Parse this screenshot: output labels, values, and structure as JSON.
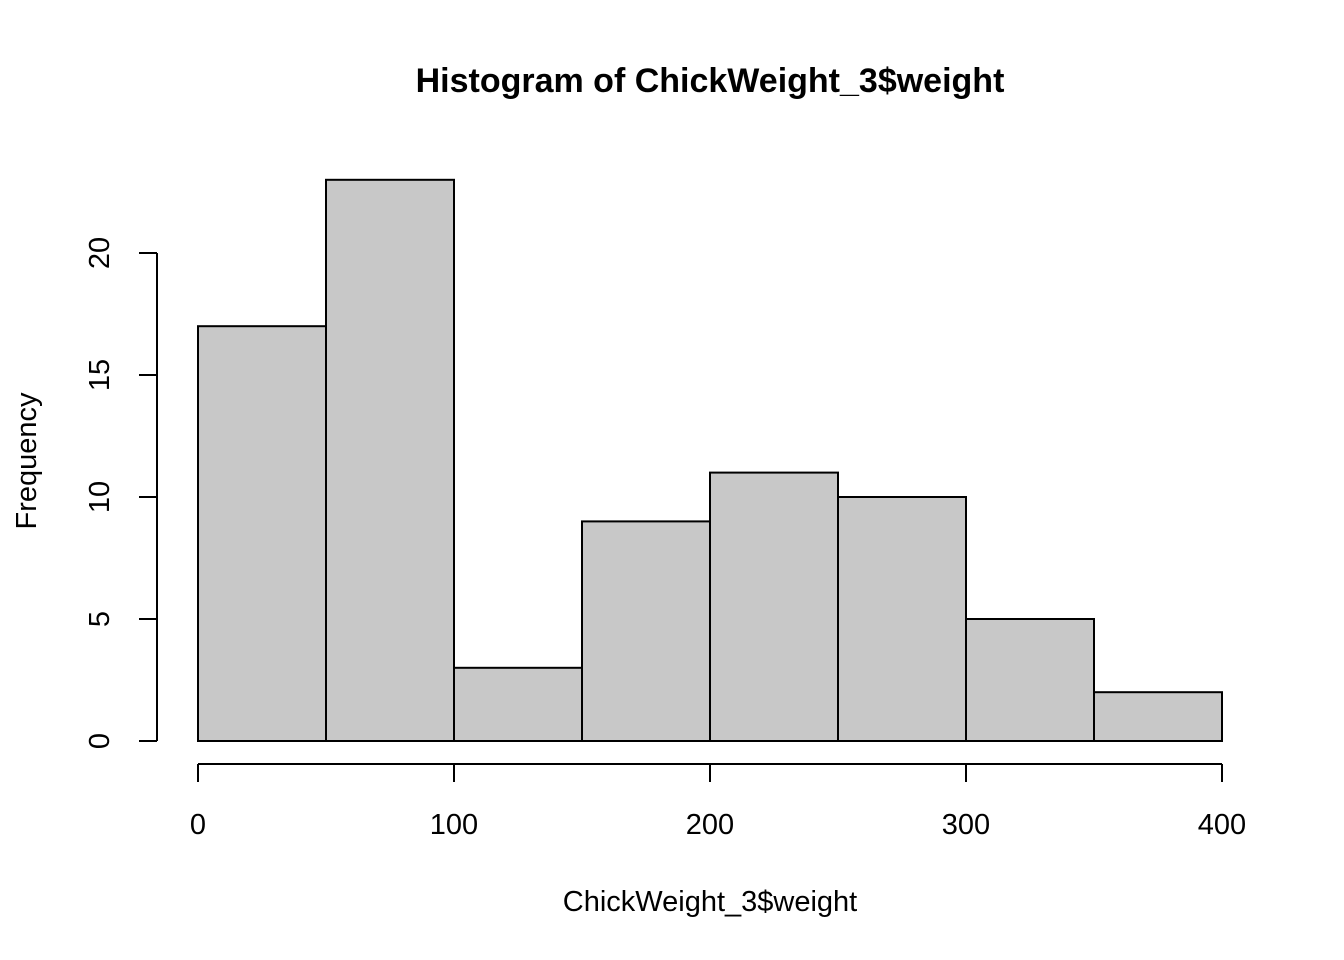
{
  "chart_data": {
    "type": "bar",
    "title": "Histogram of ChickWeight_3$weight",
    "xlabel": "ChickWeight_3$weight",
    "ylabel": "Frequency",
    "bins": [
      {
        "start": 0,
        "end": 50,
        "count": 17
      },
      {
        "start": 50,
        "end": 100,
        "count": 23
      },
      {
        "start": 100,
        "end": 150,
        "count": 3
      },
      {
        "start": 150,
        "end": 200,
        "count": 9
      },
      {
        "start": 200,
        "end": 250,
        "count": 11
      },
      {
        "start": 250,
        "end": 300,
        "count": 10
      },
      {
        "start": 300,
        "end": 350,
        "count": 5
      },
      {
        "start": 350,
        "end": 400,
        "count": 2
      }
    ],
    "xlim": [
      0,
      400
    ],
    "ylim": [
      0,
      23
    ],
    "x_ticks": [
      0,
      100,
      200,
      300,
      400
    ],
    "x_tick_labels": [
      "0",
      "100",
      "200",
      "300",
      "400"
    ],
    "y_ticks": [
      0,
      5,
      10,
      15,
      20
    ],
    "y_tick_labels": [
      "0",
      "5",
      "10",
      "15",
      "20"
    ],
    "bar_color": "#c8c8c8",
    "border_color": "#000000",
    "grid": false,
    "legend": "none"
  }
}
